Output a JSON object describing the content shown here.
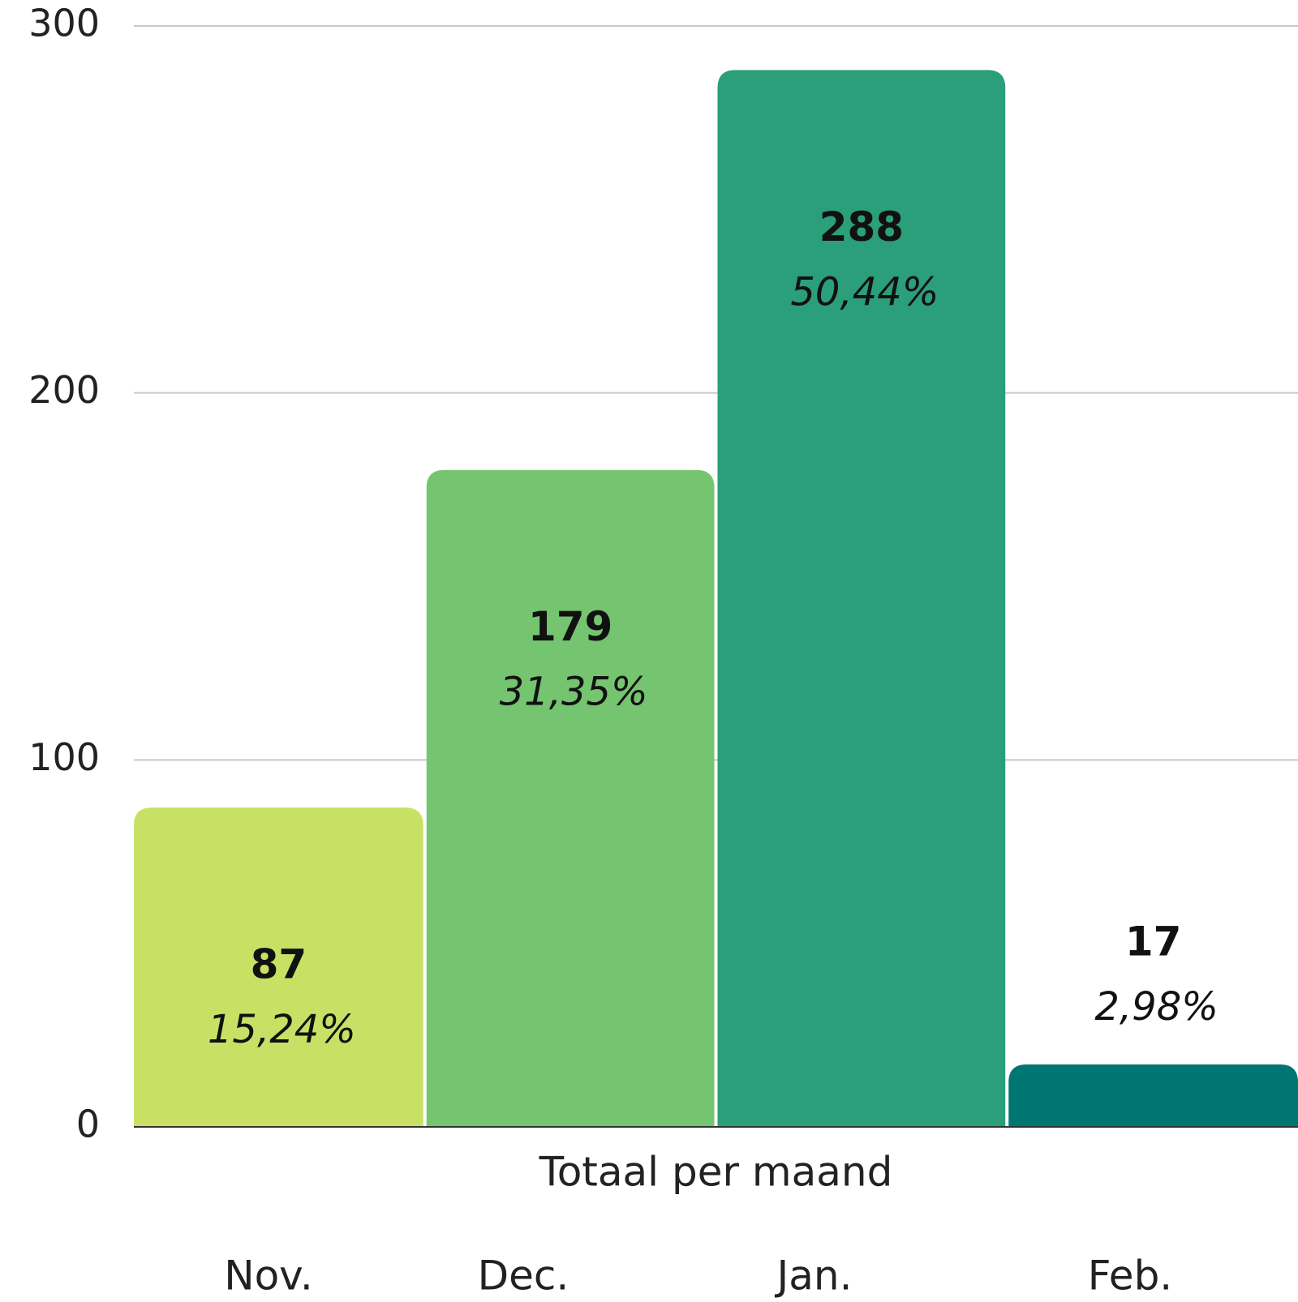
{
  "chart_data": {
    "type": "bar",
    "categories": [
      "Totaal per maand"
    ],
    "series": [
      {
        "name": "Nov.",
        "color": "#c8e165",
        "values": [
          87
        ],
        "shares": [
          15.24
        ],
        "share_labels": [
          "15,24%"
        ]
      },
      {
        "name": "Dec.",
        "color": "#75c470",
        "values": [
          179
        ],
        "shares": [
          31.35
        ],
        "share_labels": [
          "31,35%"
        ]
      },
      {
        "name": "Jan.",
        "color": "#2b9e7a",
        "values": [
          288
        ],
        "shares": [
          50.44
        ],
        "share_labels": [
          "50,44%"
        ]
      },
      {
        "name": "Feb.",
        "color": "#007672",
        "values": [
          17
        ],
        "shares": [
          2.98
        ],
        "share_labels": [
          "2,98%"
        ]
      }
    ],
    "ylim": [
      0,
      300
    ],
    "yticks": [
      0,
      100,
      200,
      300
    ],
    "grid": true
  }
}
